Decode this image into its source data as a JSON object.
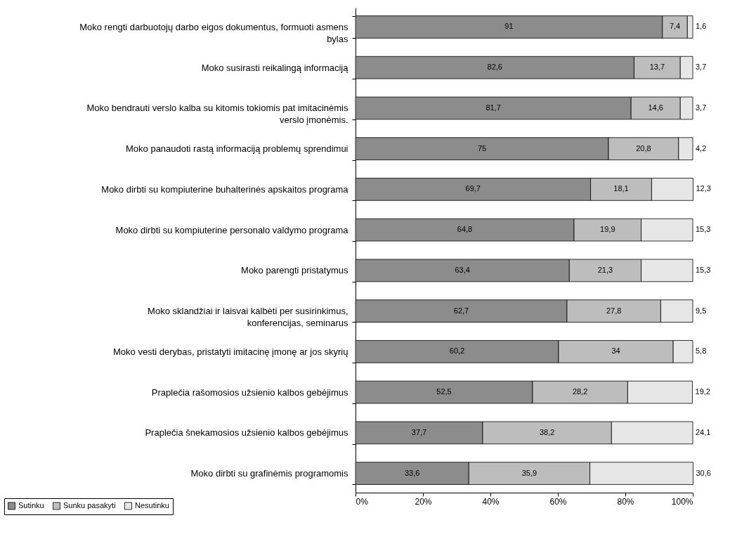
{
  "chart_data": {
    "type": "bar",
    "orientation": "horizontal",
    "stacked": true,
    "legend": "bottom left",
    "grid": false,
    "categories": [
      "Moko rengti darbuotojų darbo eigos dokumentus, formuoti asmens bylas",
      "Moko susirasti reikalingą informaciją",
      "Moko bendrauti verslo kalba su kitomis tokiomis pat imitacinėmis verslo įmonėmis.",
      "Moko panaudoti rastą informaciją problemų sprendimui",
      "Moko dirbti su kompiuterine buhalterinės apskaitos programa",
      "Moko dirbti su kompiuterine personalo valdymo programa",
      "Moko parengti pristatymus",
      "Moko sklandžiai ir laisvai kalbėti per susirinkimus, konferencijas, seminarus",
      "Moko vesti derybas, pristatyti imitacinę įmonę ar jos skyrių",
      "Praplečia rašomosios užsienio kalbos gebėjimus",
      "Praplečia šnekamosios užsienio kalbos gebėjimus",
      "Moko dirbti su grafinėmis programomis"
    ],
    "series": [
      {
        "name": "Sutinku",
        "color": "#8c8c8c",
        "values": [
          91,
          82.6,
          81.7,
          75,
          69.7,
          64.8,
          63.4,
          62.7,
          60.2,
          52.5,
          37.7,
          33.6
        ],
        "value_labels": [
          "91",
          "82,6",
          "81,7",
          "75",
          "69,7",
          "64,8",
          "63,4",
          "62,7",
          "60,2",
          "52,5",
          "37,7",
          "33,6"
        ]
      },
      {
        "name": "Sunku pasakyti",
        "color": "#bdbdbd",
        "values": [
          7.4,
          13.7,
          14.6,
          20.8,
          18.1,
          19.9,
          21.3,
          27.8,
          34,
          28.2,
          38.2,
          35.9
        ],
        "value_labels": [
          "7,4",
          "13,7",
          "14,6",
          "20,8",
          "18,1",
          "19,9",
          "21,3",
          "27,8",
          "34",
          "28,2",
          "38,2",
          "35,9"
        ]
      },
      {
        "name": "Nesutinku",
        "color": "#e6e6e6",
        "values": [
          1.6,
          3.7,
          3.7,
          4.2,
          12.3,
          15.3,
          15.3,
          9.5,
          5.8,
          19.2,
          24.1,
          30.6
        ],
        "value_labels": [
          "1,6",
          "3,7",
          "3,7",
          "4,2",
          "12,3",
          "15,3",
          "15,3",
          "9,5",
          "5,8",
          "19,2",
          "24,1",
          "30,6"
        ]
      }
    ],
    "xlim": [
      0,
      100
    ],
    "xticks": [
      {
        "value": 0,
        "label": "0%"
      },
      {
        "value": 20,
        "label": "20%"
      },
      {
        "value": 40,
        "label": "40%"
      },
      {
        "value": 60,
        "label": "60%"
      },
      {
        "value": 80,
        "label": "80%"
      },
      {
        "value": 100,
        "label": "100%"
      }
    ]
  }
}
